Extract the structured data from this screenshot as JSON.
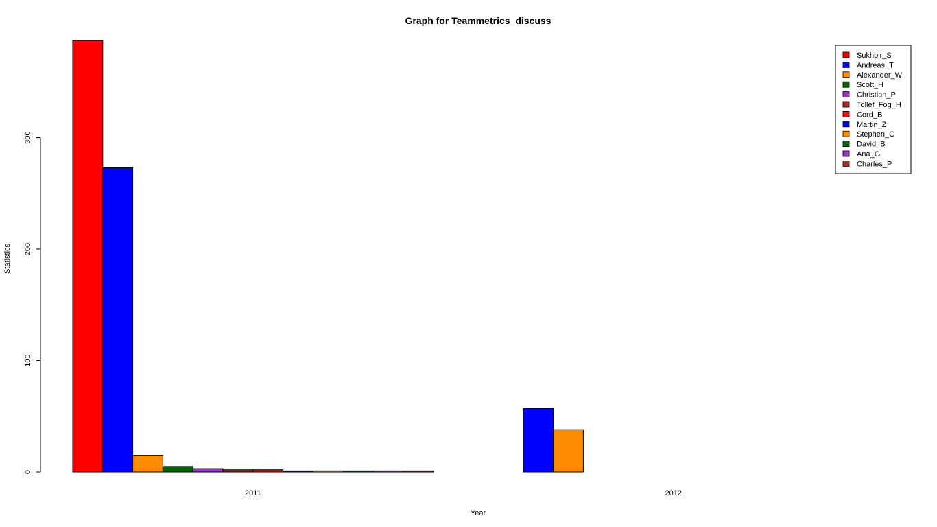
{
  "chart_data": {
    "type": "bar",
    "title": "Graph for Teammetrics_discuss",
    "xlabel": "Year",
    "ylabel": "Statistics",
    "categories": [
      "2011",
      "2012"
    ],
    "yticks": [
      "0",
      "100",
      "200",
      "300"
    ],
    "ylim": [
      0,
      388
    ],
    "legend_position": "top-right",
    "grid": false,
    "series": [
      {
        "name": "Sukhbir_S",
        "color": "#ff0000",
        "values": [
          387,
          0
        ]
      },
      {
        "name": "Andreas_T",
        "color": "#0000ff",
        "values": [
          273,
          57
        ]
      },
      {
        "name": "Alexander_W",
        "color": "#ff8c00",
        "values": [
          15,
          38
        ]
      },
      {
        "name": "Scott_H",
        "color": "#006400",
        "values": [
          5,
          0
        ]
      },
      {
        "name": "Christian_P",
        "color": "#9932cc",
        "values": [
          3,
          0
        ]
      },
      {
        "name": "Tollef_Fog_H",
        "color": "#a52a2a",
        "values": [
          2,
          0
        ]
      },
      {
        "name": "Cord_B",
        "color": "#ff0000",
        "values": [
          2,
          0
        ]
      },
      {
        "name": "Martin_Z",
        "color": "#0000ff",
        "values": [
          1,
          0
        ]
      },
      {
        "name": "Stephen_G",
        "color": "#ff8c00",
        "values": [
          1,
          0
        ]
      },
      {
        "name": "David_B",
        "color": "#006400",
        "values": [
          1,
          0
        ]
      },
      {
        "name": "Ana_G",
        "color": "#9932cc",
        "values": [
          1,
          0
        ]
      },
      {
        "name": "Charles_P",
        "color": "#a52a2a",
        "values": [
          1,
          0
        ]
      }
    ]
  }
}
